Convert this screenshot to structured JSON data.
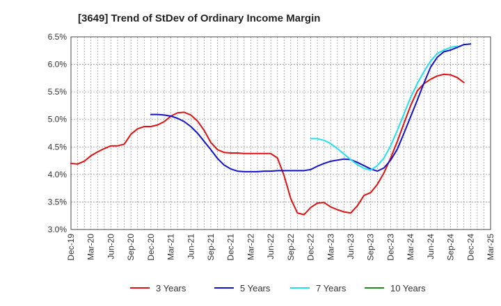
{
  "chart_data": {
    "type": "line",
    "title": "[3649]  Trend of StDev of Ordinary Income Margin",
    "xlabel": "",
    "ylabel": "",
    "ylim": [
      3.0,
      6.5
    ],
    "y_ticks": [
      3.0,
      3.5,
      4.0,
      4.5,
      5.0,
      5.5,
      6.0,
      6.5
    ],
    "y_tick_labels": [
      "3.0%",
      "3.5%",
      "4.0%",
      "4.5%",
      "5.0%",
      "5.5%",
      "6.0%",
      "6.5%"
    ],
    "x_tick_labels": [
      "Dec-19",
      "Mar-20",
      "Jun-20",
      "Sep-20",
      "Dec-20",
      "Mar-21",
      "Jun-21",
      "Sep-21",
      "Dec-21",
      "Mar-22",
      "Jun-22",
      "Sep-22",
      "Dec-22",
      "Mar-23",
      "Jun-23",
      "Sep-23",
      "Dec-23",
      "Mar-24",
      "Jun-24",
      "Sep-24",
      "Dec-24",
      "Mar-25"
    ],
    "grid": true,
    "legend_position": "bottom",
    "series": [
      {
        "name": "3 Years",
        "color": "#dd1111",
        "start_index": 0,
        "values": [
          4.2,
          4.19,
          4.24,
          4.34,
          4.41,
          4.47,
          4.52,
          4.52,
          4.55,
          4.73,
          4.83,
          4.87,
          4.87,
          4.9,
          4.96,
          5.06,
          5.12,
          5.13,
          5.08,
          4.97,
          4.8,
          4.58,
          4.45,
          4.4,
          4.39,
          4.39,
          4.38,
          4.38,
          4.38,
          4.38,
          4.38,
          4.3,
          3.98,
          3.56,
          3.3,
          3.27,
          3.4,
          3.48,
          3.49,
          3.41,
          3.36,
          3.32,
          3.3,
          3.43,
          3.62,
          3.67,
          3.82,
          4.03,
          4.3,
          4.6,
          4.93,
          5.25,
          5.52,
          5.65,
          5.73,
          5.79,
          5.82,
          5.81,
          5.76,
          5.67
        ]
      },
      {
        "name": "5 Years",
        "color": "#1111cc",
        "start_index": 12,
        "values": [
          5.09,
          5.09,
          5.08,
          5.06,
          5.02,
          4.96,
          4.87,
          4.75,
          4.6,
          4.45,
          4.29,
          4.17,
          4.1,
          4.06,
          4.05,
          4.05,
          4.05,
          4.06,
          4.06,
          4.07,
          4.07,
          4.07,
          4.07,
          4.07,
          4.09,
          4.15,
          4.2,
          4.24,
          4.26,
          4.28,
          4.27,
          4.22,
          4.16,
          4.1,
          4.06,
          4.12,
          4.26,
          4.46,
          4.75,
          5.05,
          5.35,
          5.66,
          5.95,
          6.13,
          6.23,
          6.26,
          6.31,
          6.36,
          6.37
        ]
      },
      {
        "name": "7 Years",
        "color": "#22e0ee",
        "start_index": 36,
        "values": [
          4.65,
          4.65,
          4.62,
          4.56,
          4.47,
          4.37,
          4.27,
          4.18,
          4.11,
          4.08,
          4.16,
          4.3,
          4.52,
          4.8,
          5.1,
          5.4,
          5.65,
          5.87,
          6.06,
          6.2,
          6.26,
          6.31,
          6.33
        ]
      },
      {
        "name": "10 Years",
        "color": "#228822",
        "start_index": 0,
        "values": []
      }
    ]
  }
}
